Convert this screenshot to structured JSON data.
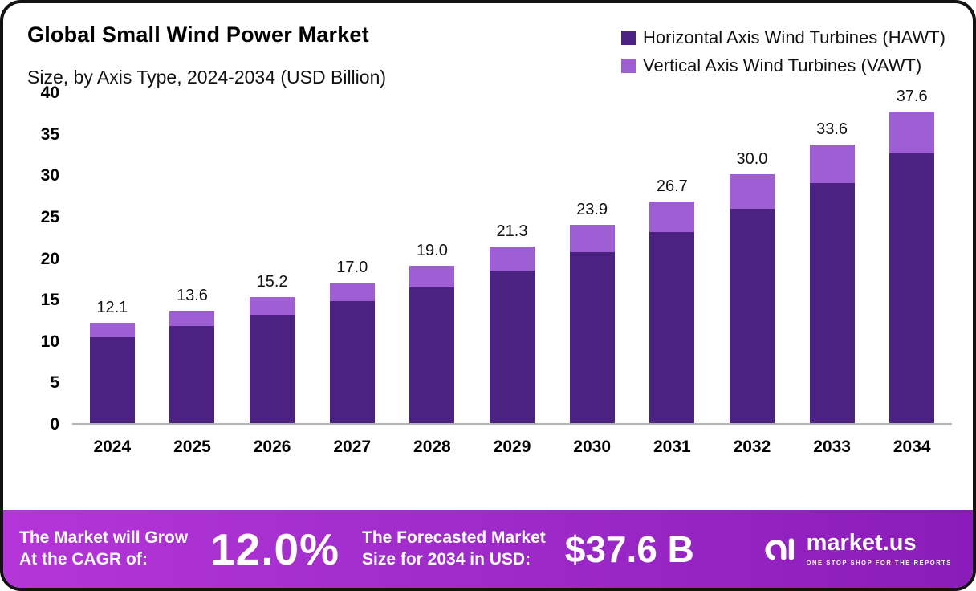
{
  "header": {
    "title": "Global Small Wind Power Market",
    "subtitle": "Size, by Axis Type, 2024-2034 (USD Billion)"
  },
  "legend": [
    {
      "label": "Horizontal Axis Wind Turbines (HAWT)",
      "color": "#4b2181"
    },
    {
      "label": "Vertical Axis Wind Turbines (VAWT)",
      "color": "#9d5fd3"
    }
  ],
  "chart_data": {
    "type": "bar",
    "stacked": true,
    "title": "Global Small Wind Power Market Size, by Axis Type, 2024-2034 (USD Billion)",
    "categories": [
      "2024",
      "2025",
      "2026",
      "2027",
      "2028",
      "2029",
      "2030",
      "2031",
      "2032",
      "2033",
      "2034"
    ],
    "series": [
      {
        "name": "Horizontal Axis Wind Turbines (HAWT)",
        "color": "#4b2181",
        "values": [
          10.4,
          11.7,
          13.1,
          14.7,
          16.4,
          18.4,
          20.6,
          23.1,
          25.9,
          29.0,
          32.5
        ]
      },
      {
        "name": "Vertical Axis Wind Turbines (VAWT)",
        "color": "#9d5fd3",
        "values": [
          1.7,
          1.9,
          2.1,
          2.3,
          2.6,
          2.9,
          3.3,
          3.6,
          4.1,
          4.6,
          5.1
        ]
      }
    ],
    "totals": [
      12.1,
      13.6,
      15.2,
      17.0,
      19.0,
      21.3,
      23.9,
      26.7,
      30.0,
      33.6,
      37.6
    ],
    "total_labels": [
      "12.1",
      "13.6",
      "15.2",
      "17.0",
      "19.0",
      "21.3",
      "23.9",
      "26.7",
      "30.0",
      "33.6",
      "37.6"
    ],
    "xlabel": "",
    "ylabel": "",
    "ylim": [
      0,
      40
    ],
    "yticks": [
      0,
      5,
      10,
      15,
      20,
      25,
      30,
      35,
      40
    ],
    "grid": false,
    "legend_position": "top-right"
  },
  "footer": {
    "cagr_label_line1": "The Market will Grow",
    "cagr_label_line2": "At the CAGR of:",
    "cagr_value": "12.0%",
    "forecast_label_line1": "The Forecasted Market",
    "forecast_label_line2": "Size for 2034 in USD:",
    "forecast_value": "$37.6 B",
    "brand": "market.us",
    "brand_tagline": "ONE STOP SHOP FOR THE REPORTS"
  }
}
